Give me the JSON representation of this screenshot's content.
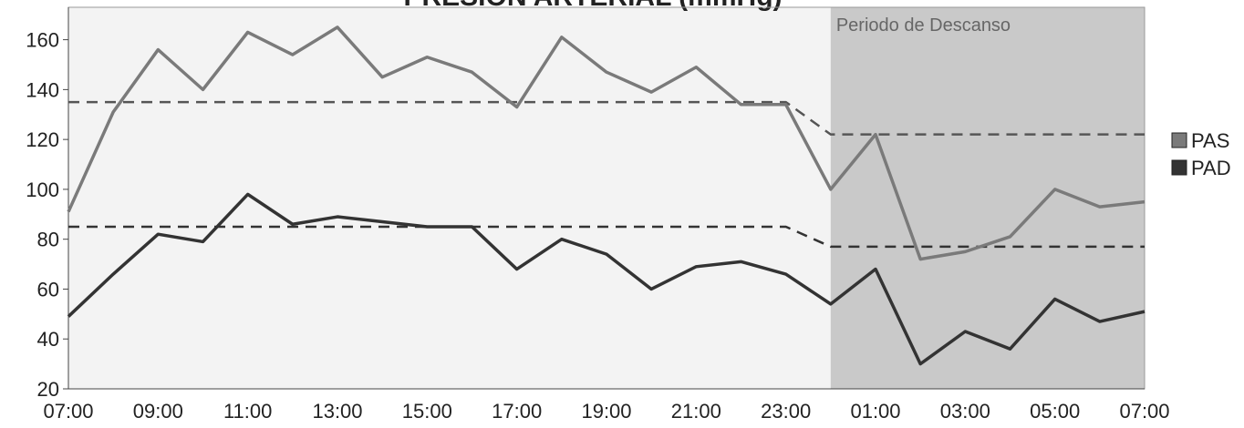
{
  "chart_data": {
    "type": "line",
    "title": "PRESIÓN ARTERIAL (mmHg)",
    "categories": [
      "07:00",
      null,
      "09:00",
      null,
      "11:00",
      null,
      "13:00",
      null,
      "15:00",
      null,
      "17:00",
      null,
      "19:00",
      null,
      "21:00",
      null,
      "23:00",
      null,
      "01:00",
      null,
      "03:00",
      null,
      "05:00",
      null,
      "07:00"
    ],
    "series": [
      {
        "name": "PAS",
        "color": "#7a7a7a",
        "values": [
          91,
          131,
          156,
          140,
          163,
          154,
          165,
          145,
          153,
          147,
          133,
          161,
          147,
          139,
          149,
          134,
          134,
          100,
          122,
          72,
          75,
          81,
          100,
          93,
          95
        ]
      },
      {
        "name": "PAD",
        "color": "#333333",
        "values": [
          49,
          66,
          82,
          79,
          98,
          86,
          89,
          87,
          85,
          85,
          68,
          80,
          74,
          60,
          69,
          71,
          66,
          54,
          68,
          30,
          43,
          36,
          56,
          47,
          51
        ]
      }
    ],
    "reference_lines": [
      {
        "color": "#555555",
        "values": [
          135,
          135,
          135,
          135,
          135,
          135,
          135,
          135,
          135,
          135,
          135,
          135,
          135,
          135,
          135,
          135,
          135,
          122,
          122,
          122,
          122,
          122,
          122,
          122,
          122
        ]
      },
      {
        "color": "#333333",
        "values": [
          85,
          85,
          85,
          85,
          85,
          85,
          85,
          85,
          85,
          85,
          85,
          85,
          85,
          85,
          85,
          85,
          85,
          77,
          77,
          77,
          77,
          77,
          77,
          77,
          77
        ]
      }
    ],
    "shaded_region": {
      "label": "Periodo de Descanso",
      "start_index": 17,
      "color": "#c9c9c9"
    },
    "ylim": [
      20,
      173
    ],
    "yticks": [
      20,
      40,
      60,
      80,
      100,
      120,
      140,
      160
    ],
    "grid": false,
    "legend": "right"
  }
}
